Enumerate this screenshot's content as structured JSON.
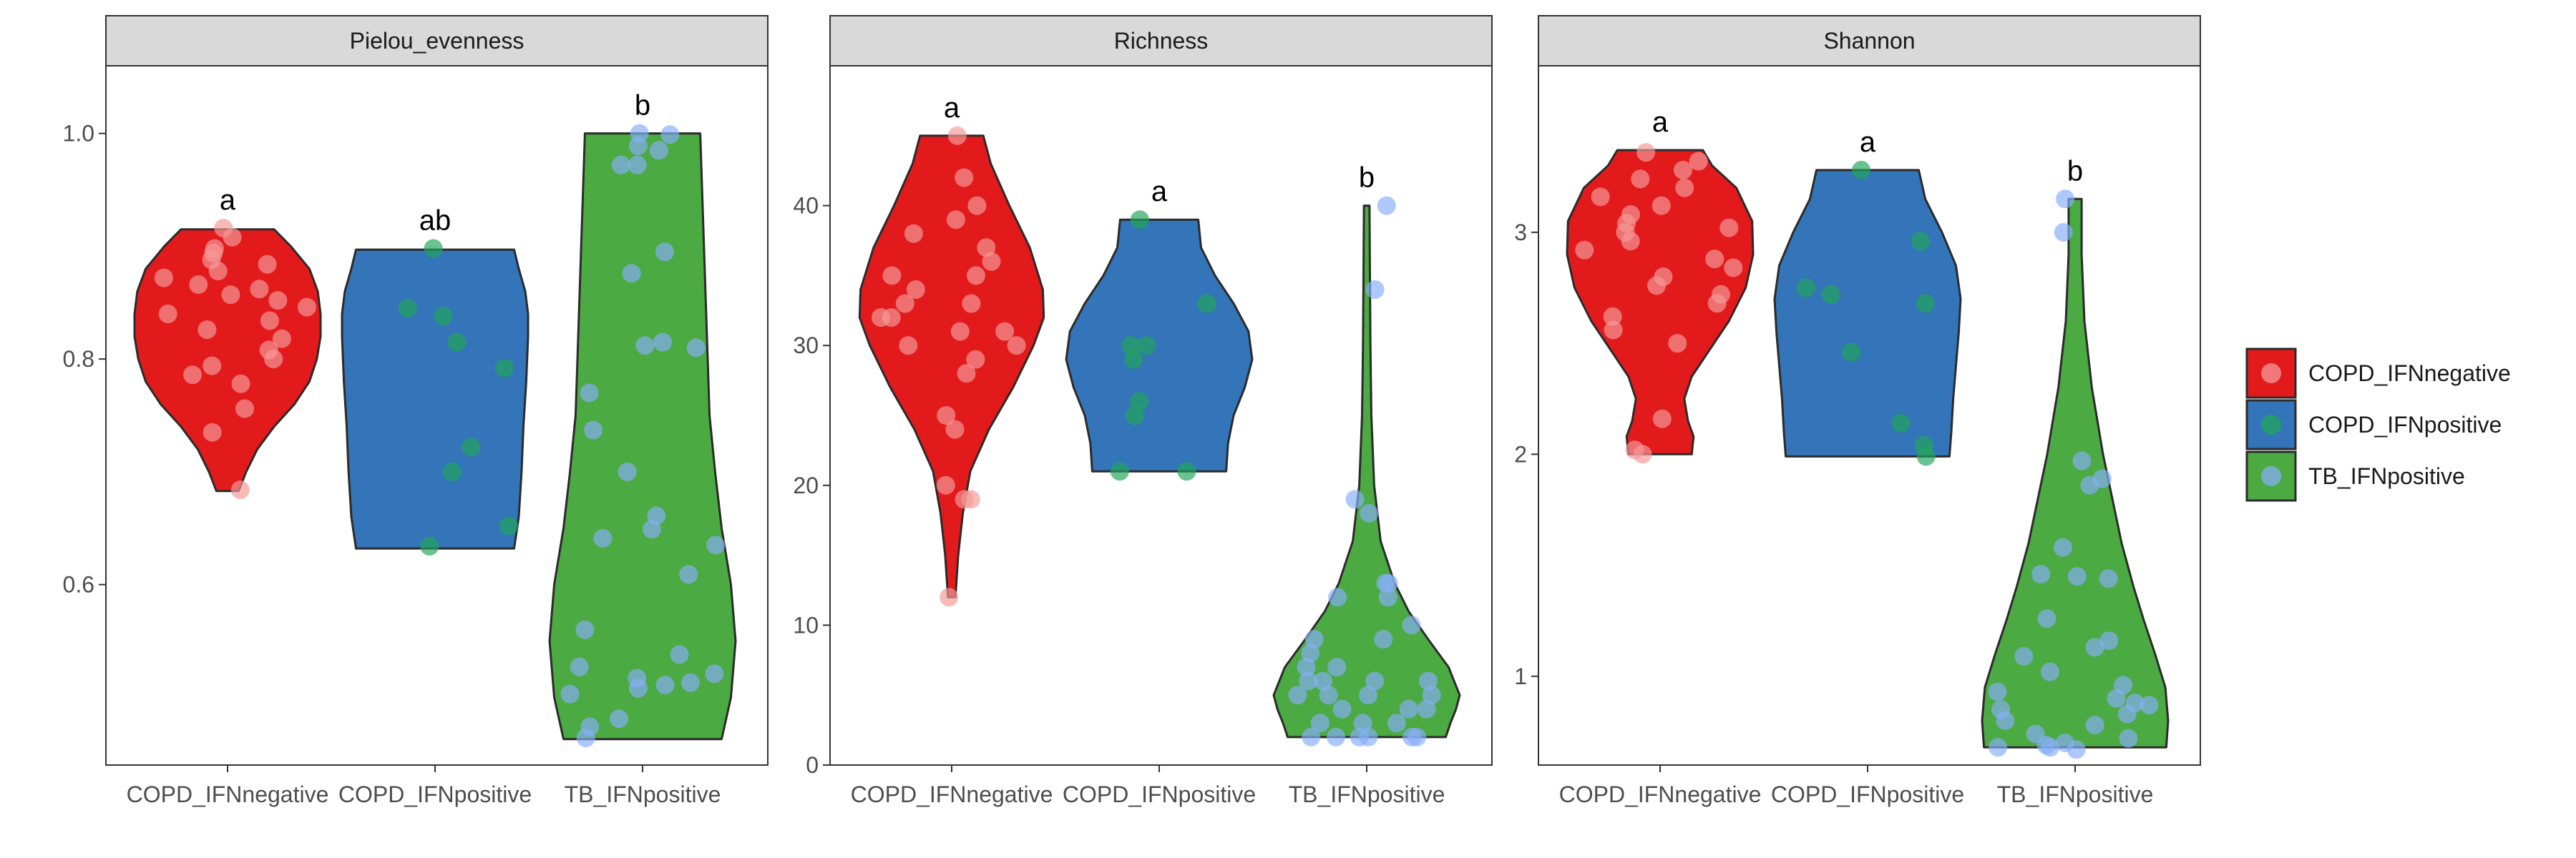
{
  "chart_data": {
    "type": "violin",
    "groups": [
      "COPD_IFNnegative",
      "COPD_IFNpositive",
      "TB_IFNpositive"
    ],
    "colors": {
      "violin_fill": [
        "#E31A1C",
        "#3375B8",
        "#4BAA41"
      ],
      "point_fill": [
        "#F59A98",
        "#22A55A",
        "#86AEF7"
      ]
    },
    "legend": {
      "position": "right",
      "entries": [
        "COPD_IFNnegative",
        "COPD_IFNpositive",
        "TB_IFNpositive"
      ]
    },
    "panels": [
      {
        "strip_title": "Pielou_evenness",
        "ylim": [
          0.44,
          1.06
        ],
        "yticks": [
          0.6,
          0.8,
          1.0
        ],
        "ytick_labels": [
          "0.6",
          "0.8",
          "1.0"
        ],
        "letters": [
          "a",
          "ab",
          "b"
        ],
        "violins": [
          {
            "min": 0.683,
            "max": 0.915,
            "profile": [
              [
                0.683,
                0.12
              ],
              [
                0.7,
                0.2
              ],
              [
                0.72,
                0.32
              ],
              [
                0.74,
                0.5
              ],
              [
                0.76,
                0.72
              ],
              [
                0.78,
                0.88
              ],
              [
                0.8,
                0.96
              ],
              [
                0.82,
                1.0
              ],
              [
                0.84,
                1.0
              ],
              [
                0.86,
                0.97
              ],
              [
                0.88,
                0.88
              ],
              [
                0.9,
                0.68
              ],
              [
                0.915,
                0.5
              ]
            ]
          },
          {
            "min": 0.632,
            "max": 0.897,
            "profile": [
              [
                0.632,
                0.85
              ],
              [
                0.66,
                0.9
              ],
              [
                0.7,
                0.93
              ],
              [
                0.74,
                0.95
              ],
              [
                0.78,
                0.98
              ],
              [
                0.82,
                1.0
              ],
              [
                0.84,
                1.0
              ],
              [
                0.86,
                0.97
              ],
              [
                0.88,
                0.9
              ],
              [
                0.897,
                0.85
              ]
            ]
          },
          {
            "min": 0.463,
            "max": 1.0,
            "profile": [
              [
                0.463,
                0.85
              ],
              [
                0.5,
                0.95
              ],
              [
                0.55,
                1.0
              ],
              [
                0.6,
                0.95
              ],
              [
                0.65,
                0.85
              ],
              [
                0.7,
                0.78
              ],
              [
                0.75,
                0.72
              ],
              [
                0.8,
                0.7
              ],
              [
                0.85,
                0.68
              ],
              [
                0.9,
                0.66
              ],
              [
                0.95,
                0.64
              ],
              [
                1.0,
                0.62
              ]
            ]
          }
        ],
        "points": [
          [
            0.916,
            0.908,
            0.898,
            0.894,
            0.888,
            0.884,
            0.878,
            0.872,
            0.866,
            0.862,
            0.857,
            0.852,
            0.846,
            0.84,
            0.834,
            0.826,
            0.818,
            0.808,
            0.8,
            0.794,
            0.786,
            0.778,
            0.756,
            0.735,
            0.684
          ],
          [
            0.898,
            0.845,
            0.838,
            0.815,
            0.792,
            0.722,
            0.7,
            0.652,
            0.634
          ],
          [
            1.0,
            0.999,
            0.989,
            0.985,
            0.972,
            0.972,
            0.895,
            0.876,
            0.815,
            0.812,
            0.81,
            0.77,
            0.737,
            0.7,
            0.661,
            0.649,
            0.641,
            0.635,
            0.609,
            0.56,
            0.538,
            0.527,
            0.521,
            0.517,
            0.513,
            0.511,
            0.508,
            0.503,
            0.481,
            0.474,
            0.464
          ]
        ]
      },
      {
        "strip_title": "Richness",
        "ylim": [
          0,
          50
        ],
        "yticks": [
          0,
          10,
          20,
          30,
          40
        ],
        "ytick_labels": [
          "0",
          "10",
          "20",
          "30",
          "40"
        ],
        "letters": [
          "a",
          "a",
          "b"
        ],
        "violins": [
          {
            "min": 12,
            "max": 45,
            "profile": [
              [
                12,
                0.04
              ],
              [
                15,
                0.07
              ],
              [
                18,
                0.12
              ],
              [
                21,
                0.2
              ],
              [
                24,
                0.4
              ],
              [
                27,
                0.66
              ],
              [
                30,
                0.88
              ],
              [
                32,
                0.99
              ],
              [
                34,
                0.98
              ],
              [
                37,
                0.84
              ],
              [
                40,
                0.62
              ],
              [
                43,
                0.42
              ],
              [
                45,
                0.34
              ]
            ]
          },
          {
            "min": 21,
            "max": 39,
            "profile": [
              [
                21,
                0.72
              ],
              [
                23,
                0.74
              ],
              [
                25,
                0.8
              ],
              [
                27,
                0.92
              ],
              [
                29,
                1.0
              ],
              [
                31,
                0.96
              ],
              [
                33,
                0.8
              ],
              [
                35,
                0.6
              ],
              [
                37,
                0.45
              ],
              [
                39,
                0.42
              ]
            ]
          },
          {
            "min": 2,
            "max": 40,
            "profile": [
              [
                2,
                0.85
              ],
              [
                3,
                0.9
              ],
              [
                4,
                0.96
              ],
              [
                5,
                1.0
              ],
              [
                7,
                0.88
              ],
              [
                9,
                0.66
              ],
              [
                11,
                0.45
              ],
              [
                13,
                0.3
              ],
              [
                16,
                0.15
              ],
              [
                20,
                0.08
              ],
              [
                25,
                0.05
              ],
              [
                30,
                0.04
              ],
              [
                35,
                0.035
              ],
              [
                40,
                0.03
              ]
            ]
          }
        ],
        "points": [
          [
            45,
            42,
            40,
            39,
            38,
            37,
            36,
            35,
            35,
            34,
            33,
            33,
            32,
            32,
            31,
            31,
            30,
            30,
            29,
            28,
            25,
            24,
            20,
            19,
            19,
            12
          ],
          [
            39,
            33,
            30,
            30,
            29,
            26,
            25,
            21,
            21
          ],
          [
            40,
            34,
            19,
            18,
            13,
            13,
            12,
            12,
            10,
            9,
            9,
            8,
            7,
            7,
            6,
            6,
            6,
            6,
            5,
            5,
            5,
            5,
            4,
            4,
            4,
            3,
            3,
            3,
            2,
            2,
            2,
            2,
            2,
            2
          ]
        ]
      },
      {
        "strip_title": "Shannon",
        "ylim": [
          0.6,
          3.75
        ],
        "yticks": [
          1,
          2,
          3
        ],
        "ytick_labels": [
          "1",
          "2",
          "3"
        ],
        "letters": [
          "a",
          "a",
          "b"
        ],
        "violins": [
          {
            "min": 2.0,
            "max": 3.37,
            "profile": [
              [
                2.0,
                0.34
              ],
              [
                2.08,
                0.36
              ],
              [
                2.15,
                0.3
              ],
              [
                2.25,
                0.26
              ],
              [
                2.35,
                0.34
              ],
              [
                2.45,
                0.5
              ],
              [
                2.6,
                0.74
              ],
              [
                2.75,
                0.92
              ],
              [
                2.9,
                1.0
              ],
              [
                3.05,
                0.99
              ],
              [
                3.2,
                0.82
              ],
              [
                3.3,
                0.56
              ],
              [
                3.37,
                0.46
              ]
            ]
          },
          {
            "min": 1.99,
            "max": 3.28,
            "profile": [
              [
                1.99,
                0.88
              ],
              [
                2.1,
                0.9
              ],
              [
                2.25,
                0.92
              ],
              [
                2.4,
                0.95
              ],
              [
                2.55,
                0.98
              ],
              [
                2.7,
                1.0
              ],
              [
                2.85,
                0.95
              ],
              [
                3.0,
                0.8
              ],
              [
                3.15,
                0.62
              ],
              [
                3.28,
                0.55
              ]
            ]
          },
          {
            "min": 0.68,
            "max": 3.15,
            "profile": [
              [
                0.68,
                0.98
              ],
              [
                0.8,
                1.0
              ],
              [
                0.95,
                0.97
              ],
              [
                1.1,
                0.86
              ],
              [
                1.25,
                0.74
              ],
              [
                1.4,
                0.63
              ],
              [
                1.6,
                0.5
              ],
              [
                1.8,
                0.4
              ],
              [
                2.0,
                0.3
              ],
              [
                2.3,
                0.18
              ],
              [
                2.6,
                0.1
              ],
              [
                2.9,
                0.07
              ],
              [
                3.15,
                0.07
              ]
            ]
          }
        ],
        "points": [
          [
            3.36,
            3.32,
            3.28,
            3.24,
            3.2,
            3.16,
            3.12,
            3.08,
            3.04,
            3.02,
            3.0,
            2.96,
            2.92,
            2.88,
            2.84,
            2.8,
            2.76,
            2.72,
            2.68,
            2.62,
            2.56,
            2.5,
            2.16,
            2.02,
            2.0
          ],
          [
            3.28,
            2.96,
            2.75,
            2.72,
            2.68,
            2.46,
            2.14,
            2.04,
            1.99
          ],
          [
            3.15,
            3.0,
            1.97,
            1.89,
            1.86,
            1.58,
            1.46,
            1.45,
            1.44,
            1.26,
            1.16,
            1.13,
            1.09,
            1.02,
            0.96,
            0.93,
            0.9,
            0.88,
            0.87,
            0.85,
            0.83,
            0.8,
            0.78,
            0.74,
            0.72,
            0.7,
            0.69,
            0.68,
            0.68,
            0.67
          ]
        ]
      }
    ]
  }
}
